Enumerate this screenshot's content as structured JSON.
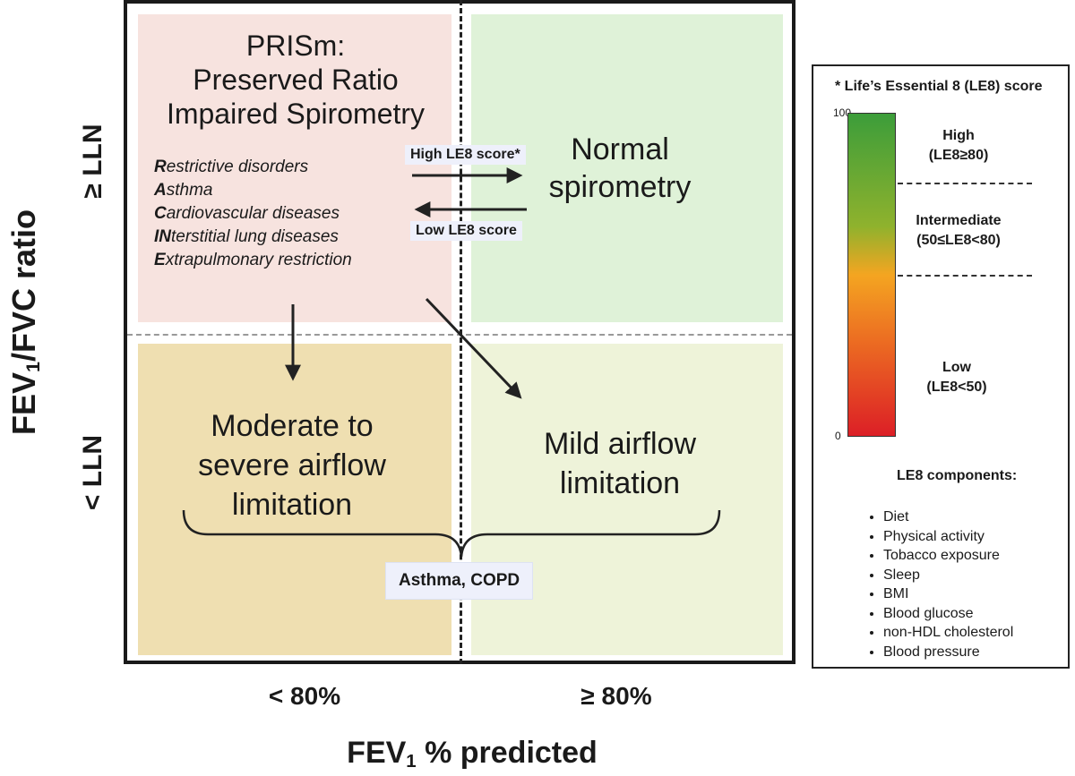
{
  "axes": {
    "y_title_main": "FEV",
    "y_title_sub": "1",
    "y_title_rest": "/FVC ratio",
    "y_top": "≥ LLN",
    "y_bottom": "< LLN",
    "x_left": "< 80%",
    "x_right": "≥ 80%",
    "x_title_main": "FEV",
    "x_title_sub": "1",
    "x_title_rest": " % predicted"
  },
  "quadrants": {
    "top_left": {
      "title_lines": [
        "PRISm:",
        "Preserved Ratio",
        "Impaired Spirometry"
      ],
      "conditions": [
        {
          "initial": "R",
          "rest": "estrictive disorders"
        },
        {
          "initial": "A",
          "rest": "sthma"
        },
        {
          "initial": "C",
          "rest": "ardiovascular diseases"
        },
        {
          "initial": "IN",
          "rest": "terstitial lung diseases"
        },
        {
          "initial": "E",
          "rest": "xtrapulmonary restriction"
        }
      ],
      "color": "#f7e3df"
    },
    "top_right": {
      "title_lines": [
        "Normal",
        "spirometry"
      ],
      "color": "#dff2d8"
    },
    "bottom_left": {
      "title_lines": [
        "Moderate to",
        "severe airflow",
        "limitation"
      ],
      "color": "#efdfb1"
    },
    "bottom_right": {
      "title_lines": [
        "Mild airflow",
        "limitation"
      ],
      "color": "#eef3d9"
    }
  },
  "arrows": {
    "high_label": "High LE8 score*",
    "low_label": "Low LE8 score"
  },
  "brace_label": "Asthma, COPD",
  "legend": {
    "title": "* Life’s Essential 8 (LE8) score",
    "tick_top": "100",
    "tick_bottom": "0",
    "bands": [
      {
        "name": "High",
        "range": "(LE8≥80)"
      },
      {
        "name": "Intermediate",
        "range": "(50≤LE8<80)"
      },
      {
        "name": "Low",
        "range": "(LE8<50)"
      }
    ],
    "gradient_colors": [
      "#3c9d3a",
      "#8fb22d",
      "#f4a521",
      "#ec6e22",
      "#dc1f26"
    ],
    "components_title": "LE8 components:",
    "components": [
      "Diet",
      "Physical activity",
      "Tobacco exposure",
      "Sleep",
      "BMI",
      "Blood glucose",
      "non-HDL cholesterol",
      "Blood pressure"
    ]
  }
}
